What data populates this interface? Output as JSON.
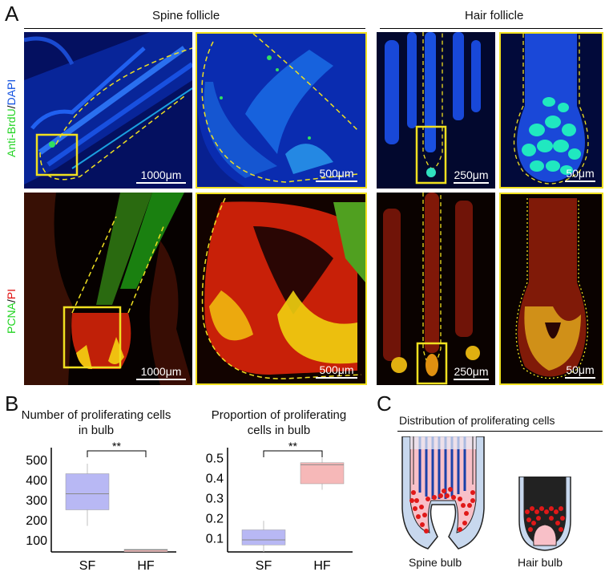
{
  "panel_a": {
    "letter": "A",
    "header_spine": "Spine follicle",
    "header_hair": "Hair follicle",
    "row1_label_green": "Anti-BrdU",
    "row1_label_sep": "/",
    "row1_label_blue": "DAPI",
    "row2_label_green": "PCNA",
    "row2_label_sep": "/",
    "row2_label_red": "PI",
    "scales": [
      "1000μm",
      "500μm",
      "250μm",
      "50μm",
      "1000μm",
      "500μm",
      "250μm",
      "50μm"
    ],
    "colors": {
      "blue": "#1040d8",
      "green": "#22d422",
      "red": "#e01010",
      "yellow": "#f0e020",
      "dapi_bg": "#03063a"
    }
  },
  "panel_b": {
    "letter": "B",
    "chart_data": [
      {
        "type": "box",
        "title": "Number of proliferating cells in bulb",
        "categories": [
          "SF",
          "HF"
        ],
        "yticks": [
          100,
          200,
          300,
          400,
          500
        ],
        "ylim": [
          40,
          560
        ],
        "significance": "**",
        "boxes": [
          {
            "name": "SF",
            "whisker_low": 170,
            "q1": 250,
            "median": 330,
            "q3": 430,
            "whisker_high": 480,
            "color": "#b8b8f4"
          },
          {
            "name": "HF",
            "whisker_low": 47,
            "q1": 47,
            "median": 50,
            "q3": 53,
            "whisker_high": 53,
            "color": "#f6b8b8"
          }
        ]
      },
      {
        "type": "box",
        "title": "Proportion of proliferating cells in bulb",
        "categories": [
          "SF",
          "HF"
        ],
        "yticks": [
          0.1,
          0.2,
          0.3,
          0.4,
          0.5
        ],
        "ylim": [
          0.03,
          0.55
        ],
        "significance": "**",
        "boxes": [
          {
            "name": "SF",
            "whisker_low": 0.03,
            "q1": 0.065,
            "median": 0.09,
            "q3": 0.14,
            "whisker_high": 0.185,
            "color": "#b8b8f4"
          },
          {
            "name": "HF",
            "whisker_low": 0.34,
            "q1": 0.37,
            "median": 0.465,
            "q3": 0.475,
            "whisker_high": 0.5,
            "color": "#f6b8b8"
          }
        ]
      }
    ]
  },
  "panel_c": {
    "letter": "C",
    "title": "Distribution of proliferating cells",
    "label_spine": "Spine bulb",
    "label_hair": "Hair bulb"
  }
}
